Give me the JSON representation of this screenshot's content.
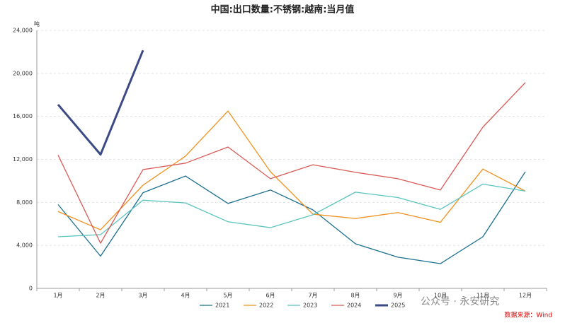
{
  "chart_data": {
    "type": "line",
    "title": "中国:出口数量:不锈钢:越南:当月值",
    "y_unit": "吨",
    "categories": [
      "1月",
      "2月",
      "3月",
      "4月",
      "5月",
      "6月",
      "7月",
      "8月",
      "9月",
      "10月",
      "11月",
      "12月"
    ],
    "series": [
      {
        "name": "2021",
        "color": "#1b6f8f",
        "width": 1.3,
        "values": [
          7800,
          3000,
          8900,
          10450,
          7900,
          9150,
          7300,
          4150,
          2900,
          2300,
          4800,
          10850
        ]
      },
      {
        "name": "2022",
        "color": "#f0901e",
        "width": 1.3,
        "values": [
          7150,
          5450,
          9600,
          12300,
          16500,
          10850,
          6900,
          6500,
          7050,
          6150,
          11100,
          9050
        ]
      },
      {
        "name": "2023",
        "color": "#5cc4bf",
        "width": 1.3,
        "values": [
          4800,
          5000,
          8200,
          7950,
          6200,
          5650,
          6850,
          8950,
          8450,
          7350,
          9700,
          9050
        ]
      },
      {
        "name": "2024",
        "color": "#d95a55",
        "width": 1.3,
        "values": [
          12400,
          4200,
          11050,
          11650,
          13150,
          10200,
          11500,
          10800,
          10200,
          9150,
          15000,
          19150
        ]
      },
      {
        "name": "2025",
        "color": "#3c4a85",
        "width": 3,
        "values": [
          17100,
          12450,
          22150,
          null,
          null,
          null,
          null,
          null,
          null,
          null,
          null,
          null
        ]
      }
    ],
    "ylim": [
      0,
      24000
    ],
    "yticks": [
      0,
      {
        "value": 4000,
        "label": "4,000"
      },
      {
        "value": 8000,
        "label": "8,000"
      },
      {
        "value": 12000,
        "label": "12,000"
      },
      {
        "value": 16000,
        "label": "16,000"
      },
      {
        "value": 20000,
        "label": "20,000"
      },
      {
        "value": 24000,
        "label": "24,000"
      }
    ],
    "grid": true,
    "watermark": "公众号 · 永安研究",
    "source": "数据来源：Wind"
  }
}
